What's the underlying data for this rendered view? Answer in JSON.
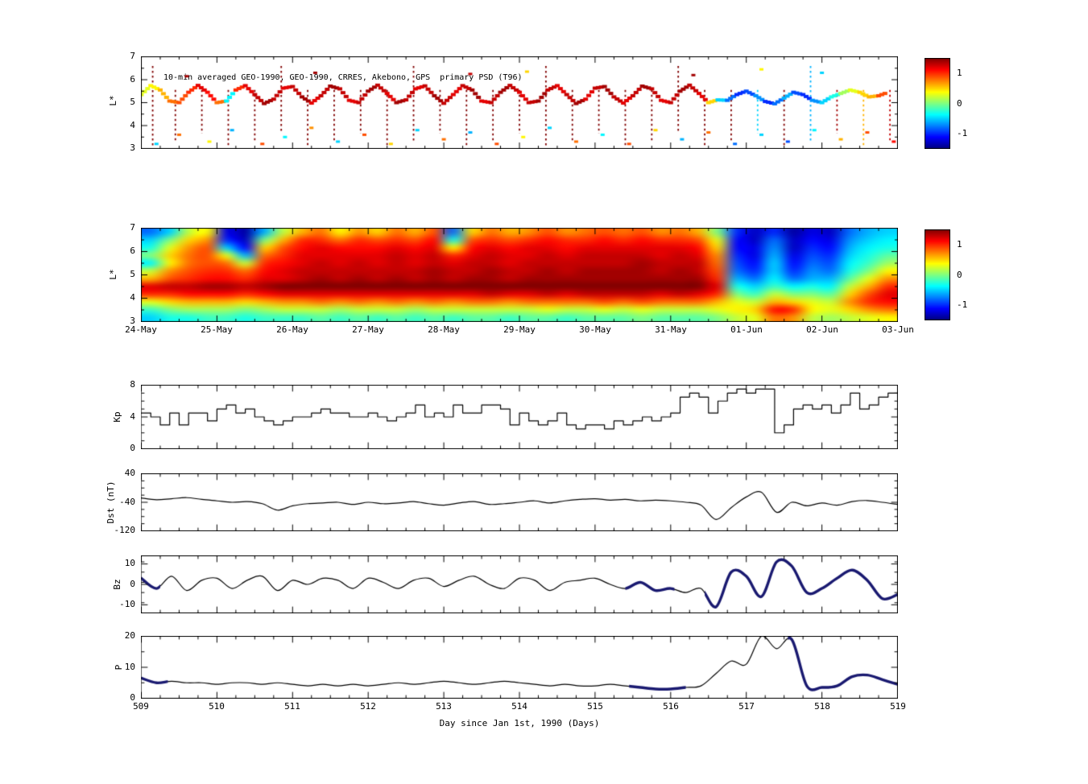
{
  "figure": {
    "background": "#ffffff",
    "colors": {
      "line": "#000000",
      "bold_line": "#191970",
      "frame": "#000000"
    }
  },
  "colorbar": {
    "domain": [
      -1.5,
      1.5
    ],
    "tick_labels": [
      "1",
      "0",
      "-1"
    ],
    "tick_values": [
      1,
      0,
      -1
    ]
  },
  "chart_data": [
    {
      "id": "psd-scatter",
      "type": "scatter",
      "title": "10-min averaged GEO-1990, GEO-1990, CRRES, Akebono, GPS  primary PSD (T96)",
      "ylabel": "L*",
      "ylim": [
        3,
        7
      ],
      "yticks": [
        3,
        4,
        5,
        6,
        7
      ],
      "y_minor_step": 0.5,
      "xlim": [
        509,
        519
      ],
      "track": {
        "x0": 509,
        "dx": 0.125,
        "L": [
          5.35,
          5.74,
          5.55,
          5.07,
          5.0,
          5.45,
          5.75,
          5.45,
          5.0,
          5.07,
          5.55,
          5.74,
          5.35,
          4.96,
          5.15,
          5.63,
          5.7,
          5.25,
          4.98,
          5.3,
          5.72,
          5.6,
          5.1,
          5.0,
          5.5,
          5.76,
          5.4,
          5.0,
          5.12,
          5.6,
          5.73,
          5.3,
          4.97,
          5.35,
          5.74,
          5.55,
          5.07,
          5.0,
          5.45,
          5.75,
          5.45,
          5.0,
          5.07,
          5.55,
          5.74,
          5.35,
          4.96,
          5.15,
          5.63,
          5.7,
          5.25,
          4.98,
          5.3,
          5.72,
          5.6,
          5.1,
          5.0,
          5.5,
          5.76,
          5.4,
          5.0,
          5.12,
          5.1,
          5.35,
          5.5,
          5.3,
          5.05,
          4.95,
          5.2,
          5.45,
          5.35,
          5.1,
          5.0,
          5.25,
          5.4,
          5.55,
          5.45,
          5.25,
          5.3,
          5.45
        ],
        "v": [
          0.3,
          0.4,
          0.6,
          0.8,
          0.9,
          1.0,
          1.2,
          1.1,
          0.8,
          -0.4,
          1.0,
          1.2,
          1.3,
          1.4,
          1.3,
          1.2,
          1.3,
          1.4,
          1.2,
          1.3,
          1.4,
          1.3,
          1.2,
          1.3,
          1.4,
          1.3,
          1.2,
          1.4,
          1.3,
          1.2,
          1.3,
          1.4,
          1.3,
          1.2,
          1.3,
          1.4,
          1.2,
          1.3,
          1.4,
          1.3,
          1.2,
          1.3,
          1.4,
          1.3,
          1.2,
          1.3,
          1.4,
          1.2,
          1.3,
          1.4,
          1.3,
          1.2,
          1.3,
          1.4,
          1.3,
          1.2,
          1.3,
          1.4,
          1.3,
          1.2,
          0.5,
          -0.5,
          -0.8,
          -1.0,
          -0.9,
          -0.7,
          -1.0,
          -0.8,
          -0.6,
          -0.9,
          -1.0,
          -0.7,
          -0.5,
          -0.3,
          0.1,
          0.3,
          0.5,
          0.6,
          0.9,
          1.1
        ]
      },
      "streaks": {
        "x": [
          509.15,
          509.45,
          509.8,
          510.15,
          510.5,
          510.85,
          511.2,
          511.55,
          511.9,
          512.25,
          512.6,
          512.95,
          513.3,
          513.65,
          514.0,
          514.35,
          514.7,
          515.05,
          515.4,
          515.75,
          516.1,
          516.45,
          516.8,
          517.15,
          517.5,
          517.85,
          518.2,
          518.55,
          518.9
        ],
        "v": [
          1.5,
          1.5,
          1.5,
          1.5,
          1.5,
          1.5,
          1.5,
          1.5,
          1.5,
          1.5,
          1.5,
          1.5,
          1.5,
          1.5,
          1.5,
          1.5,
          1.5,
          1.5,
          1.5,
          1.5,
          1.5,
          1.5,
          1.5,
          -0.5,
          1.5,
          -0.6,
          1.4,
          0.6,
          1.3
        ],
        "L_top": 5.55,
        "L_bottom": 3.05
      },
      "points": [
        [
          509.2,
          3.2,
          -0.5
        ],
        [
          509.5,
          3.6,
          0.8
        ],
        [
          509.9,
          3.3,
          0.4
        ],
        [
          510.2,
          3.8,
          -0.6
        ],
        [
          510.6,
          3.2,
          0.9
        ],
        [
          510.9,
          3.5,
          -0.4
        ],
        [
          511.25,
          3.9,
          0.7
        ],
        [
          511.6,
          3.3,
          -0.5
        ],
        [
          511.95,
          3.6,
          0.9
        ],
        [
          512.3,
          3.2,
          0.5
        ],
        [
          512.65,
          3.8,
          -0.5
        ],
        [
          513.0,
          3.4,
          0.8
        ],
        [
          513.35,
          3.7,
          -0.6
        ],
        [
          513.7,
          3.2,
          0.9
        ],
        [
          514.05,
          3.5,
          0.4
        ],
        [
          514.4,
          3.9,
          -0.5
        ],
        [
          514.75,
          3.3,
          0.8
        ],
        [
          515.1,
          3.6,
          -0.4
        ],
        [
          515.45,
          3.2,
          0.9
        ],
        [
          515.8,
          3.8,
          0.5
        ],
        [
          516.15,
          3.4,
          -0.6
        ],
        [
          516.5,
          3.7,
          0.8
        ],
        [
          516.85,
          3.2,
          -0.8
        ],
        [
          517.2,
          3.6,
          -0.5
        ],
        [
          517.55,
          3.3,
          -0.9
        ],
        [
          517.9,
          3.8,
          -0.4
        ],
        [
          518.25,
          3.4,
          0.6
        ],
        [
          518.6,
          3.7,
          0.9
        ],
        [
          518.95,
          3.3,
          1.1
        ],
        [
          509.6,
          6.15,
          1.4
        ],
        [
          511.3,
          6.3,
          1.4
        ],
        [
          513.35,
          6.25,
          1.3
        ],
        [
          514.1,
          6.35,
          0.5
        ],
        [
          516.3,
          6.2,
          1.4
        ],
        [
          517.2,
          6.45,
          0.4
        ],
        [
          518.0,
          6.3,
          -0.5
        ]
      ]
    },
    {
      "id": "psd-heatmap",
      "type": "heatmap",
      "ylabel": "L*",
      "ylim": [
        3,
        7
      ],
      "yticks": [
        3,
        4,
        5,
        6,
        7
      ],
      "y_minor_step": 0.5,
      "xlim": [
        509,
        519
      ],
      "x_tick_labels": [
        "24-May",
        "25-May",
        "26-May",
        "27-May",
        "28-May",
        "29-May",
        "30-May",
        "31-May",
        "01-Jun",
        "02-Jun",
        "03-Jun"
      ],
      "value_domain": [
        -1.5,
        1.5
      ],
      "grid_rows": 12,
      "grid_cols": 40,
      "values": [
        [
          -0.8,
          -0.5,
          0.2,
          0.4,
          -1.2,
          -1.4,
          -0.6,
          0.2,
          0.6,
          0.8,
          0.4,
          0.7,
          0.5,
          0.8,
          0.6,
          0.9,
          -0.8,
          0.5,
          0.8,
          0.6,
          0.7,
          0.9,
          0.7,
          0.8,
          0.9,
          0.8,
          0.9,
          0.7,
          0.8,
          0.6,
          0.0,
          -1.0,
          -1.3,
          -1.0,
          -1.4,
          -1.2,
          -1.3,
          -0.8,
          -0.6,
          -0.5
        ],
        [
          -0.5,
          0.0,
          0.5,
          0.7,
          -1.0,
          -1.3,
          0.0,
          0.6,
          1.0,
          1.0,
          0.8,
          1.0,
          0.9,
          1.0,
          0.9,
          1.1,
          -0.3,
          0.9,
          1.0,
          0.9,
          1.0,
          1.1,
          1.0,
          1.0,
          1.1,
          1.0,
          1.1,
          1.0,
          1.0,
          0.9,
          0.3,
          -1.1,
          -1.3,
          -0.8,
          -1.3,
          -1.1,
          -1.2,
          -0.7,
          -0.5,
          -0.4
        ],
        [
          -0.3,
          0.3,
          0.7,
          0.9,
          -0.5,
          -1.1,
          0.5,
          0.9,
          1.1,
          1.2,
          1.1,
          1.1,
          1.1,
          1.2,
          1.1,
          1.2,
          0.4,
          1.1,
          1.2,
          1.1,
          1.2,
          1.2,
          1.1,
          1.2,
          1.2,
          1.2,
          1.2,
          1.2,
          1.2,
          1.1,
          0.5,
          -1.1,
          -1.2,
          -0.7,
          -1.3,
          -1.0,
          -1.1,
          -0.6,
          -0.4,
          -0.3
        ],
        [
          0.0,
          0.5,
          0.8,
          0.9,
          0.3,
          -0.6,
          0.8,
          1.0,
          1.2,
          1.2,
          1.2,
          1.2,
          1.2,
          1.3,
          1.2,
          1.3,
          1.0,
          1.2,
          1.3,
          1.2,
          1.2,
          1.3,
          1.2,
          1.3,
          1.3,
          1.3,
          1.3,
          1.2,
          1.3,
          1.2,
          0.7,
          -1.0,
          -1.2,
          -0.6,
          -1.2,
          -0.9,
          -1.0,
          -0.5,
          -0.3,
          -0.1
        ],
        [
          -0.4,
          0.4,
          0.8,
          0.9,
          0.8,
          0.2,
          1.0,
          1.1,
          1.2,
          1.3,
          1.2,
          1.3,
          1.2,
          1.3,
          1.2,
          1.3,
          1.2,
          1.3,
          1.3,
          1.2,
          1.3,
          1.3,
          1.3,
          1.3,
          1.3,
          1.3,
          1.4,
          1.3,
          1.3,
          1.3,
          0.8,
          -0.9,
          -1.1,
          -0.5,
          -1.1,
          -0.8,
          -0.9,
          -0.4,
          -0.2,
          0.1
        ],
        [
          0.2,
          0.7,
          0.9,
          1.0,
          1.0,
          0.8,
          1.1,
          1.2,
          1.3,
          1.3,
          1.3,
          1.3,
          1.3,
          1.3,
          1.3,
          1.4,
          1.3,
          1.3,
          1.4,
          1.3,
          1.3,
          1.4,
          1.3,
          1.4,
          1.4,
          1.4,
          1.4,
          1.3,
          1.4,
          1.3,
          0.9,
          -0.8,
          -1.0,
          -0.5,
          -1.0,
          -0.7,
          -0.8,
          -0.3,
          0.0,
          0.4
        ],
        [
          0.6,
          0.9,
          1.0,
          1.1,
          1.1,
          1.0,
          1.2,
          1.2,
          1.3,
          1.4,
          1.3,
          1.4,
          1.3,
          1.4,
          1.3,
          1.4,
          1.3,
          1.4,
          1.4,
          1.3,
          1.4,
          1.4,
          1.4,
          1.4,
          1.4,
          1.4,
          1.4,
          1.4,
          1.4,
          1.4,
          1.0,
          -0.6,
          -0.8,
          -0.4,
          -0.8,
          -0.6,
          -0.6,
          -0.1,
          0.3,
          0.7
        ],
        [
          1.2,
          1.3,
          1.3,
          1.4,
          1.4,
          1.3,
          1.4,
          1.5,
          1.5,
          1.5,
          1.5,
          1.5,
          1.5,
          1.5,
          1.5,
          1.5,
          1.5,
          1.5,
          1.5,
          1.5,
          1.5,
          1.5,
          1.5,
          1.5,
          1.5,
          1.5,
          1.5,
          1.5,
          1.5,
          1.5,
          1.2,
          -0.3,
          -0.5,
          -0.2,
          -0.4,
          -0.3,
          -0.4,
          0.2,
          0.6,
          1.0
        ],
        [
          1.0,
          1.0,
          1.1,
          1.1,
          1.1,
          1.0,
          1.1,
          1.2,
          1.2,
          1.2,
          1.2,
          1.2,
          1.2,
          1.2,
          1.2,
          1.2,
          1.2,
          1.2,
          1.3,
          1.2,
          1.2,
          1.3,
          1.2,
          1.3,
          1.3,
          1.3,
          1.3,
          1.2,
          1.3,
          1.2,
          1.0,
          0.0,
          -0.2,
          0.2,
          0.0,
          0.0,
          -0.1,
          0.5,
          0.9,
          1.2
        ],
        [
          0.3,
          0.5,
          0.6,
          0.6,
          0.6,
          0.5,
          0.6,
          0.7,
          0.7,
          0.8,
          0.7,
          0.8,
          0.7,
          0.8,
          0.7,
          0.8,
          0.7,
          0.8,
          0.8,
          0.7,
          0.8,
          0.8,
          0.8,
          0.8,
          0.9,
          0.8,
          0.9,
          0.8,
          0.8,
          0.8,
          0.6,
          0.3,
          0.2,
          0.6,
          0.5,
          0.3,
          0.2,
          0.7,
          1.0,
          1.1
        ],
        [
          -0.2,
          0.0,
          0.1,
          0.1,
          0.1,
          0.0,
          0.1,
          0.2,
          0.2,
          0.2,
          0.1,
          0.2,
          0.2,
          0.2,
          0.1,
          0.2,
          0.2,
          0.2,
          0.2,
          0.2,
          0.2,
          0.3,
          0.2,
          0.2,
          0.3,
          0.2,
          0.3,
          0.2,
          0.2,
          0.2,
          0.3,
          0.4,
          0.5,
          1.1,
          1.0,
          0.4,
          0.3,
          0.5,
          0.7,
          0.8
        ],
        [
          -0.5,
          -0.3,
          -0.3,
          -0.2,
          -0.2,
          -0.3,
          -0.2,
          -0.2,
          -0.2,
          -0.1,
          -0.2,
          -0.1,
          -0.2,
          -0.1,
          -0.2,
          -0.1,
          -0.2,
          -0.1,
          -0.1,
          -0.2,
          -0.1,
          -0.1,
          -0.2,
          -0.1,
          -0.1,
          -0.1,
          0.0,
          -0.1,
          -0.1,
          -0.1,
          0.0,
          0.2,
          0.3,
          0.8,
          0.7,
          0.2,
          0.1,
          0.2,
          0.3,
          0.4
        ]
      ]
    },
    {
      "id": "kp",
      "type": "step",
      "ylabel": "Kp",
      "ylim": [
        0,
        8
      ],
      "yticks": [
        0,
        4,
        8
      ],
      "y_minor_step": 1,
      "xlim": [
        509,
        519
      ],
      "x0": 509,
      "dx": 0.125,
      "values": [
        4.5,
        4,
        3,
        4.5,
        3,
        4.5,
        4.5,
        3.5,
        5,
        5.5,
        4.5,
        5,
        4,
        3.5,
        3,
        3.5,
        4,
        4,
        4.5,
        5,
        4.5,
        4.5,
        4,
        4,
        4.5,
        4,
        3.5,
        4,
        4.5,
        5.5,
        4,
        4.5,
        4,
        5.5,
        4.5,
        4.5,
        5.5,
        5.5,
        5,
        3,
        4.5,
        3.5,
        3,
        3.5,
        4.5,
        3,
        2.5,
        3,
        3,
        2.5,
        3.5,
        3,
        3.5,
        4,
        3.5,
        4,
        4.5,
        6.5,
        7,
        6.5,
        4.5,
        6,
        7,
        7.5,
        7,
        7.5,
        7.5,
        2,
        3,
        5,
        5.5,
        5,
        5.5,
        4.5,
        5.5,
        7,
        5,
        5.5,
        6.5,
        7
      ]
    },
    {
      "id": "dst",
      "type": "line",
      "ylabel": "Dst (nT)",
      "ylim": [
        -120,
        40
      ],
      "yticks": [
        40,
        -40,
        -120
      ],
      "y_minor_step": 20,
      "xlim": [
        509,
        519
      ],
      "x0": 509,
      "dx": 0.2,
      "values": [
        -28,
        -33,
        -30,
        -27,
        -32,
        -36,
        -40,
        -38,
        -44,
        -62,
        -50,
        -44,
        -42,
        -40,
        -46,
        -40,
        -44,
        -42,
        -38,
        -44,
        -48,
        -42,
        -38,
        -46,
        -44,
        -40,
        -36,
        -42,
        -36,
        -32,
        -30,
        -34,
        -32,
        -36,
        -34,
        -36,
        -40,
        -48,
        -88,
        -55,
        -25,
        -12,
        -68,
        -40,
        -50,
        -42,
        -48,
        -38,
        -35,
        -40,
        -46
      ]
    },
    {
      "id": "bz",
      "type": "line",
      "ylabel": "Bz",
      "ylim": [
        -14,
        14
      ],
      "yticks": [
        10,
        0,
        -10
      ],
      "y_minor_step": 5,
      "xlim": [
        509,
        519
      ],
      "x0": 509,
      "dx": 0.2,
      "values": [
        3,
        -2,
        4,
        -3,
        2,
        3,
        -2,
        2,
        4,
        -3,
        2,
        0,
        3,
        2,
        -2,
        3,
        1,
        -2,
        2,
        3,
        -1,
        2,
        4,
        0,
        -2,
        3,
        2,
        -3,
        1,
        2,
        3,
        0,
        -2,
        1,
        -3,
        -2,
        -4,
        -2,
        -11,
        6,
        4,
        -6,
        11,
        9,
        -4,
        -2,
        3,
        7,
        2,
        -7,
        -5
      ],
      "bold_ranges": [
        [
          509.0,
          509.25
        ],
        [
          515.4,
          516.05
        ],
        [
          516.45,
          519.0
        ]
      ]
    },
    {
      "id": "p",
      "type": "line",
      "ylabel": "P",
      "ylim": [
        0,
        20
      ],
      "yticks": [
        20,
        10,
        0
      ],
      "y_minor_step": 5,
      "xlim": [
        509,
        519
      ],
      "x0": 509,
      "dx": 0.2,
      "values": [
        6.5,
        5,
        5.5,
        5,
        5,
        4.5,
        5,
        5,
        4.5,
        5,
        4.5,
        4,
        4.5,
        4,
        4.5,
        4,
        4.5,
        5,
        4.5,
        5,
        5.5,
        5,
        4.5,
        5,
        5.5,
        5,
        4.5,
        4,
        4.5,
        4,
        4,
        4.5,
        4,
        3.5,
        3,
        3,
        3.5,
        4,
        8,
        12,
        11,
        20,
        16,
        19,
        4,
        3.5,
        4,
        7,
        7.5,
        6,
        4.5
      ],
      "bold_ranges": [
        [
          509.0,
          509.35
        ],
        [
          515.45,
          516.2
        ],
        [
          517.55,
          519.0
        ]
      ],
      "xlabel": "Day since Jan 1st, 1990 (Days)",
      "x_tick_labels": [
        "509",
        "510",
        "511",
        "512",
        "513",
        "514",
        "515",
        "516",
        "517",
        "518",
        "519"
      ]
    }
  ]
}
